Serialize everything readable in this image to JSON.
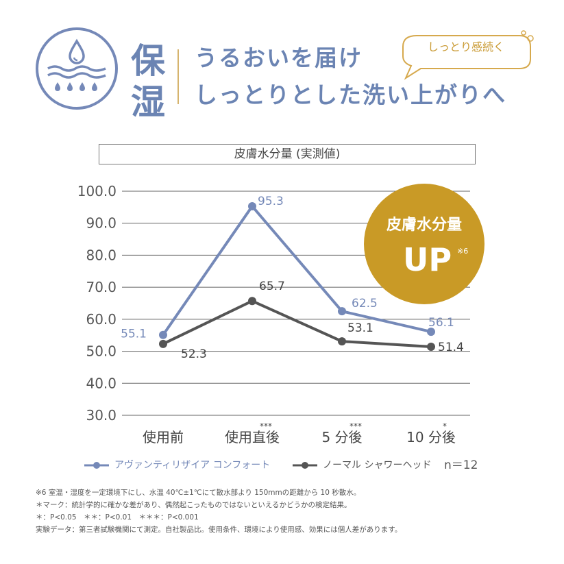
{
  "header": {
    "kanji": [
      "保",
      "湿"
    ],
    "headline_lines": [
      "うるおいを届け",
      "しっとりとした洗い上がりへ"
    ],
    "bubble_text": "しっとり感続く",
    "icon": "water-drop-moisture-icon"
  },
  "badge": {
    "line1": "皮膚水分量",
    "line2": "UP",
    "note": "※6",
    "color": "#c99a26"
  },
  "legend": {
    "items": [
      {
        "label": "アヴァンティリザイア コンフォート",
        "color": "#7589b8"
      },
      {
        "label": "ノーマル シャワーヘッド",
        "color": "#555555"
      }
    ],
    "n_label": "n＝12"
  },
  "chart_data": {
    "type": "line",
    "title": "皮膚水分量 (実測値)",
    "categories": [
      "使用前",
      "使用直後",
      "5 分後",
      "10 分後"
    ],
    "significance": [
      "",
      "***",
      "***",
      "*"
    ],
    "series": [
      {
        "name": "アヴァンティリザイア コンフォート",
        "values": [
          55.1,
          95.3,
          62.5,
          56.1
        ],
        "value_labels": [
          "55.1",
          "95.3",
          "62.5",
          "56.1"
        ],
        "color": "#7589b8"
      },
      {
        "name": "ノーマル シャワーヘッド",
        "values": [
          52.3,
          65.7,
          53.1,
          51.4
        ],
        "value_labels": [
          "52.3",
          "65.7",
          "53.1",
          "51.4"
        ],
        "color": "#555555"
      }
    ],
    "yticks": [
      "30.0",
      "40.0",
      "50.0",
      "60.0",
      "70.0",
      "80.0",
      "90.0",
      "100.0"
    ],
    "ylim": [
      30,
      100
    ],
    "grid": true,
    "legend_position": "bottom"
  },
  "notes": [
    "※6 室温・湿度を一定環境下にし、水温 40℃±1℃にて散水部より 150mmの距離から 10 秒散水。",
    "＊マーク：統計学的に確かな差があり、偶然起こったものではないといえるかどうかの検定結果。",
    "＊：P<0.05　＊＊：P<0.01　＊＊＊：P<0.001",
    "実験データ：第三者試験機関にて測定。自社製品比。使用条件、環境により使用感、効果には個人差があります。"
  ]
}
